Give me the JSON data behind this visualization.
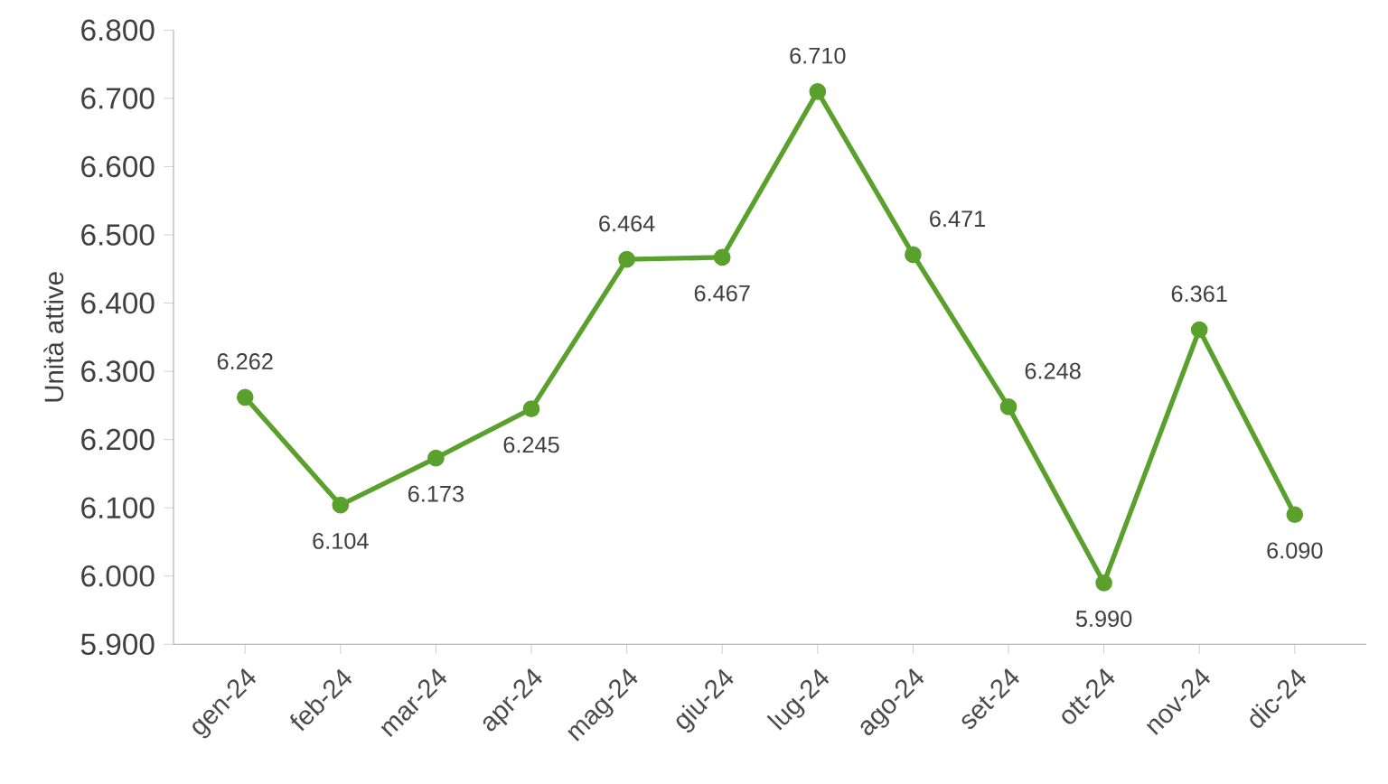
{
  "chart_data": {
    "type": "line",
    "ylabel": "Unità attive",
    "categories": [
      "gen-24",
      "feb-24",
      "mar-24",
      "apr-24",
      "mag-24",
      "giu-24",
      "lug-24",
      "ago-24",
      "set-24",
      "ott-24",
      "nov-24",
      "dic-24"
    ],
    "series": [
      {
        "color": "#5aa02c",
        "values": [
          6262,
          6104,
          6173,
          6245,
          6464,
          6467,
          6710,
          6471,
          6248,
          5990,
          6361,
          6090
        ],
        "value_labels": [
          "6.262",
          "6.104",
          "6.173",
          "6.245",
          "6.464",
          "6.467",
          "6.710",
          "6.471",
          "6.248",
          "5.990",
          "6.361",
          "6.090"
        ]
      }
    ],
    "ylim": [
      5900,
      6800
    ],
    "yticks": [
      {
        "value": 5900,
        "label": "5.900"
      },
      {
        "value": 6000,
        "label": "6.000"
      },
      {
        "value": 6100,
        "label": "6.100"
      },
      {
        "value": 6200,
        "label": "6.200"
      },
      {
        "value": 6300,
        "label": "6.300"
      },
      {
        "value": 6400,
        "label": "6.400"
      },
      {
        "value": 6500,
        "label": "6.500"
      },
      {
        "value": 6600,
        "label": "6.600"
      },
      {
        "value": 6700,
        "label": "6.700"
      },
      {
        "value": 6800,
        "label": "6.800"
      }
    ],
    "marker": "circle",
    "line_style": "solid",
    "grid": false
  }
}
